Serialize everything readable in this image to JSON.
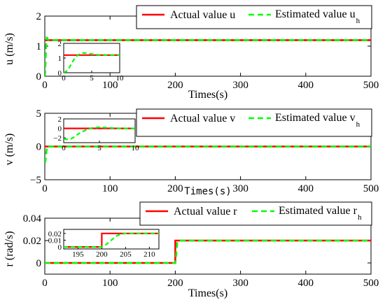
{
  "colors": {
    "actual": "#ff0000",
    "estimated": "#00ff00"
  },
  "chart_data": [
    {
      "type": "line",
      "title": "",
      "xlabel": "Times(s)",
      "ylabel": "u (m/s)",
      "xlim": [
        0,
        500
      ],
      "ylim": [
        0,
        2
      ],
      "xticks": [
        "0",
        "100",
        "200",
        "300",
        "400",
        "500"
      ],
      "yticks": [
        "0",
        "1",
        "2"
      ],
      "legend": {
        "placement": "top-right",
        "entries": [
          {
            "label": "Actual value u",
            "sub": ""
          },
          {
            "label": "Estimated value u",
            "sub": "h"
          }
        ]
      },
      "series": [
        {
          "name": "Actual value u",
          "x": [
            0,
            500
          ],
          "y": [
            1.2,
            1.2
          ]
        },
        {
          "name": "Estimated value u",
          "sub": "h",
          "x": [
            0,
            0.5,
            1,
            1.5,
            2,
            3,
            4,
            5,
            6,
            500
          ],
          "y": [
            0,
            0.1,
            0.35,
            0.7,
            1.0,
            1.28,
            1.27,
            1.22,
            1.2,
            1.2
          ]
        }
      ],
      "inset": {
        "xlim": [
          0,
          10
        ],
        "ylim": [
          0,
          2
        ],
        "xticks": [
          "0",
          "5",
          "10"
        ],
        "yticks": [
          "0",
          "1",
          "2"
        ],
        "series": [
          {
            "name": "Actual value u",
            "x": [
              0,
              10
            ],
            "y": [
              1.2,
              1.2
            ]
          },
          {
            "name": "Estimated value u",
            "x": [
              0,
              0.5,
              1,
              1.5,
              2,
              2.5,
              3,
              3.5,
              4,
              5,
              6,
              8,
              10
            ],
            "y": [
              0,
              0.1,
              0.35,
              0.7,
              1.0,
              1.2,
              1.3,
              1.35,
              1.33,
              1.27,
              1.22,
              1.2,
              1.2
            ]
          }
        ]
      }
    },
    {
      "type": "line",
      "title": "",
      "xlabel": "Times(s)",
      "ylabel": "v (m/s)",
      "xlim": [
        0,
        500
      ],
      "ylim": [
        -5,
        5
      ],
      "xticks": [
        "0",
        "100",
        "200",
        "300",
        "400",
        "500"
      ],
      "yticks": [
        "−5",
        "0",
        "5"
      ],
      "legend": {
        "placement": "top-right",
        "entries": [
          {
            "label": "Actual value v",
            "sub": ""
          },
          {
            "label": "Estimated value v",
            "sub": "h"
          }
        ]
      },
      "series": [
        {
          "name": "Actual value v",
          "x": [
            0,
            500
          ],
          "y": [
            0,
            0
          ]
        },
        {
          "name": "Estimated value v",
          "sub": "h",
          "x": [
            0,
            1,
            2,
            3,
            5,
            7,
            500
          ],
          "y": [
            -2.5,
            -2.2,
            -1.2,
            -0.4,
            0.1,
            0,
            0
          ]
        }
      ],
      "inset": {
        "xlim": [
          0,
          10
        ],
        "ylim": [
          -3,
          2
        ],
        "xticks": [
          "0",
          "5",
          "10"
        ],
        "yticks": [
          "−2",
          "0",
          "2"
        ],
        "series": [
          {
            "name": "Actual value v",
            "x": [
              0,
              10
            ],
            "y": [
              0,
              0
            ]
          },
          {
            "name": "Estimated value v",
            "x": [
              0,
              0.5,
              1,
              1.5,
              2,
              3,
              4,
              5,
              6,
              7,
              8,
              10
            ],
            "y": [
              -2.2,
              -2.3,
              -2.2,
              -1.8,
              -1.2,
              -0.4,
              0.1,
              0.25,
              0.15,
              0.05,
              0,
              0
            ]
          }
        ]
      }
    },
    {
      "type": "line",
      "title": "",
      "xlabel": "Times(s)",
      "ylabel": "r (rad/s)",
      "xlim": [
        0,
        500
      ],
      "ylim": [
        -0.01,
        0.04
      ],
      "xticks": [
        "0",
        "100",
        "200",
        "300",
        "400",
        "500"
      ],
      "yticks": [
        "0",
        "0.02",
        "0.04"
      ],
      "legend": {
        "placement": "top-right",
        "entries": [
          {
            "label": "Actual value r",
            "sub": ""
          },
          {
            "label": "Estimated value r",
            "sub": "h"
          }
        ]
      },
      "series": [
        {
          "name": "Actual value r",
          "x": [
            0,
            200,
            200,
            500
          ],
          "y": [
            0,
            0,
            0.02,
            0.02
          ]
        },
        {
          "name": "Estimated value r",
          "sub": "h",
          "x": [
            0,
            200,
            201,
            202,
            203,
            205,
            500
          ],
          "y": [
            0,
            0,
            0.004,
            0.012,
            0.018,
            0.02,
            0.02
          ]
        }
      ],
      "inset": {
        "xlim": [
          192,
          212
        ],
        "ylim": [
          -0.003,
          0.026
        ],
        "xticks": [
          "195",
          "200",
          "205",
          "210"
        ],
        "yticks": [
          "0",
          "0.01",
          "0.02"
        ],
        "series": [
          {
            "name": "Actual value r",
            "x": [
              192,
              200,
              200,
              212
            ],
            "y": [
              0,
              0,
              0.02,
              0.02
            ]
          },
          {
            "name": "Estimated value r",
            "x": [
              192,
              200,
              201,
              202,
              203,
              204,
              205,
              212
            ],
            "y": [
              0,
              0,
              0.004,
              0.01,
              0.016,
              0.019,
              0.02,
              0.02
            ]
          }
        ]
      }
    }
  ]
}
